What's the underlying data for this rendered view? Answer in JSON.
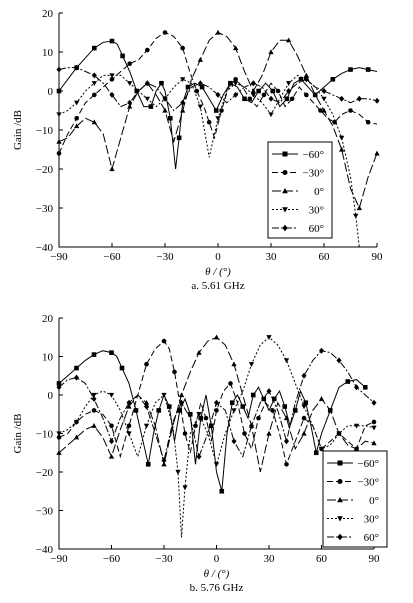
{
  "chart_data": [
    {
      "type": "line",
      "caption": "a. 5.61 GHz",
      "xlabel": "θ / (°)",
      "ylabel": "Gain /dB",
      "xlim": [
        -90,
        90
      ],
      "ylim": [
        -40,
        20
      ],
      "xticks": [
        "−90",
        "−60",
        "−30",
        "0",
        "30",
        "60",
        "90"
      ],
      "yticks": [
        "20",
        "10",
        "0",
        "−10",
        "−20",
        "−30",
        "−40"
      ],
      "legend_position": "bottom-right",
      "series": [
        {
          "name": "−60°",
          "marker": "square",
          "dash": "none",
          "x": [
            -90,
            -85,
            -80,
            -75,
            -70,
            -65,
            -60,
            -57,
            -54,
            -50,
            -46,
            -42,
            -38,
            -35,
            -32,
            -30,
            -27,
            -24,
            -22,
            -20,
            -17,
            -13,
            -9,
            -5,
            -1,
            3,
            7,
            11,
            15,
            19,
            23,
            27,
            31,
            35,
            39,
            43,
            47,
            51,
            55,
            60,
            65,
            70,
            75,
            80,
            85,
            90
          ],
          "y": [
            0,
            3,
            6,
            8.5,
            11,
            12.5,
            12.8,
            12,
            9,
            5,
            0,
            -4,
            -4,
            0,
            2,
            0,
            -7,
            -20,
            -12,
            -3,
            1,
            2,
            1,
            -2,
            -5,
            -1,
            2,
            1,
            -2,
            -3,
            0,
            2,
            0,
            -4,
            -2,
            2,
            3,
            1,
            -1,
            1,
            3,
            4.5,
            5.5,
            6,
            5.5,
            5
          ]
        },
        {
          "name": "−30°",
          "marker": "circle",
          "dash": "6,3",
          "x": [
            -90,
            -85,
            -80,
            -75,
            -70,
            -65,
            -60,
            -55,
            -50,
            -45,
            -40,
            -35,
            -30,
            -25,
            -20,
            -16,
            -12,
            -8,
            -5,
            -2,
            2,
            6,
            10,
            14,
            18,
            22,
            26,
            30,
            34,
            38,
            42,
            46,
            50,
            54,
            58,
            62,
            66,
            70,
            75,
            80,
            85,
            90
          ],
          "y": [
            -16,
            -11,
            -7,
            -3,
            -1,
            1,
            3,
            5,
            7,
            8,
            10.5,
            13.5,
            15,
            14,
            11,
            5,
            0,
            -4,
            -8,
            -12,
            -5,
            1,
            3,
            1,
            -2,
            -4,
            -1,
            2,
            0,
            -4,
            -2,
            1,
            -1,
            -3,
            -5,
            -7,
            -8,
            -6,
            -5,
            -6,
            -8,
            -8.5
          ]
        },
        {
          "name": "0°",
          "marker": "triangle",
          "dash": "9,3",
          "x": [
            -90,
            -85,
            -80,
            -75,
            -70,
            -65,
            -60,
            -55,
            -50,
            -45,
            -40,
            -35,
            -30,
            -25,
            -20,
            -15,
            -10,
            -5,
            0,
            5,
            10,
            15,
            20,
            25,
            30,
            35,
            40,
            45,
            50,
            55,
            60,
            65,
            70,
            75,
            80,
            85,
            90
          ],
          "y": [
            -13,
            -12,
            -9,
            -7,
            -8,
            -11,
            -20,
            -12,
            -4,
            0,
            2,
            -1,
            -5,
            -13,
            -5,
            3,
            8,
            13,
            15,
            14,
            11,
            5,
            0,
            4,
            10,
            13,
            13,
            9,
            4,
            -1,
            -5,
            -9,
            -15,
            -25,
            -30,
            -22,
            -16
          ]
        },
        {
          "name": "30°",
          "marker": "tridown",
          "dash": "2,2",
          "x": [
            -90,
            -85,
            -80,
            -75,
            -70,
            -65,
            -60,
            -55,
            -50,
            -45,
            -40,
            -35,
            -30,
            -25,
            -20,
            -15,
            -10,
            -5,
            0,
            5,
            10,
            15,
            20,
            25,
            30,
            35,
            40,
            45,
            50,
            55,
            60,
            65,
            70,
            75,
            78,
            80
          ],
          "y": [
            -6,
            -5,
            -3,
            0,
            2,
            4,
            4,
            4,
            2,
            0,
            -2,
            -4,
            -2,
            1,
            3,
            2,
            -4,
            -17,
            -7,
            0,
            2,
            1,
            -1,
            -3,
            -6,
            -2,
            2,
            4,
            3,
            1,
            -2,
            -6,
            -12,
            -22,
            -32,
            -40
          ]
        },
        {
          "name": "60°",
          "marker": "diamond",
          "dash": "7,2,2,2",
          "x": [
            -90,
            -85,
            -80,
            -75,
            -70,
            -65,
            -60,
            -55,
            -50,
            -45,
            -40,
            -35,
            -30,
            -25,
            -20,
            -15,
            -10,
            -5,
            0,
            5,
            10,
            15,
            20,
            25,
            30,
            35,
            40,
            45,
            50,
            55,
            60,
            65,
            70,
            75,
            80,
            85,
            90
          ],
          "y": [
            5.5,
            6,
            6,
            5,
            4,
            2,
            -1,
            -4,
            -3,
            0,
            2,
            1,
            -2,
            -5,
            -3,
            1,
            2,
            1,
            -1,
            -3,
            -1,
            1,
            2,
            1,
            -2,
            -3,
            0,
            2,
            3,
            1,
            0,
            -1,
            -2,
            -3,
            -2,
            -2,
            -2.5
          ]
        }
      ]
    },
    {
      "type": "line",
      "caption": "b. 5.76 GHz",
      "xlabel": "θ / (°)",
      "ylabel": "Gain /dB",
      "xlim": [
        -90,
        90
      ],
      "ylim": [
        -40,
        20
      ],
      "xticks": [
        "−90",
        "−60",
        "−30",
        "0",
        "30",
        "60",
        "90"
      ],
      "yticks": [
        "20",
        "10",
        "0",
        "−10",
        "−20",
        "−30",
        "−40"
      ],
      "legend_position": "bottom-right",
      "series": [
        {
          "name": "−60°",
          "marker": "square",
          "dash": "none",
          "x": [
            -90,
            -85,
            -80,
            -75,
            -70,
            -65,
            -60,
            -57,
            -54,
            -50,
            -46,
            -42,
            -39,
            -36,
            -33,
            -30,
            -27,
            -24,
            -21,
            -18,
            -15,
            -12,
            -9,
            -6,
            -3,
            0,
            3,
            6,
            9,
            12,
            15,
            18,
            21,
            24,
            27,
            30,
            33,
            36,
            39,
            42,
            45,
            48,
            51,
            54,
            57,
            60,
            65,
            70,
            75,
            80,
            85
          ],
          "y": [
            3,
            5,
            7,
            9,
            10.5,
            11.5,
            11,
            10,
            7,
            3,
            -4,
            -12,
            -18,
            -10,
            -4,
            0,
            -3,
            -12,
            -4,
            -1,
            -5,
            -18,
            -6,
            0,
            -8,
            -20,
            -25,
            -10,
            -2,
            0,
            -3,
            -6,
            0,
            2,
            -1,
            -4,
            -1,
            1,
            -3,
            -8,
            -4,
            1,
            -2,
            -8,
            -15,
            -10,
            -4,
            2,
            3.5,
            4,
            2
          ]
        },
        {
          "name": "−30°",
          "marker": "circle",
          "dash": "6,3",
          "x": [
            -90,
            -85,
            -80,
            -75,
            -70,
            -65,
            -60,
            -55,
            -50,
            -45,
            -40,
            -35,
            -30,
            -27,
            -24,
            -21,
            -18,
            -15,
            -12,
            -9,
            -6,
            -3,
            0,
            4,
            8,
            12,
            16,
            20,
            24,
            28,
            32,
            36,
            40,
            45,
            50,
            55,
            60,
            65,
            70,
            75,
            80,
            85,
            90
          ],
          "y": [
            -11,
            -10,
            -7,
            -5,
            -4,
            -5,
            -8,
            -16,
            -8,
            0,
            8,
            12,
            14,
            12,
            6,
            -2,
            -10,
            -15,
            -8,
            -2,
            -6,
            -12,
            -4,
            1,
            3,
            -2,
            -10,
            -14,
            -6,
            -2,
            -4,
            -10,
            -18,
            -12,
            -6,
            -8,
            -14,
            -12,
            -10,
            -12,
            -14,
            -8,
            -7
          ]
        },
        {
          "name": "0°",
          "marker": "triangle",
          "dash": "9,3",
          "x": [
            -90,
            -85,
            -80,
            -75,
            -70,
            -65,
            -60,
            -55,
            -50,
            -45,
            -40,
            -35,
            -30,
            -25,
            -20,
            -15,
            -10,
            -5,
            0,
            5,
            10,
            15,
            20,
            25,
            30,
            35,
            40,
            45,
            50,
            55,
            60,
            65,
            70,
            75,
            80,
            85,
            90
          ],
          "y": [
            -15,
            -13,
            -11,
            -9,
            -8,
            -11,
            -16,
            -9,
            -3,
            0,
            -2,
            -8,
            -18,
            -8,
            0,
            6,
            11,
            14,
            15,
            13,
            8,
            0,
            -8,
            -20,
            -10,
            -2,
            -6,
            -14,
            -10,
            -4,
            -1,
            -4,
            -10,
            -13,
            -14,
            -12,
            -12.5
          ]
        },
        {
          "name": "30°",
          "marker": "tridown",
          "dash": "2,2",
          "x": [
            -90,
            -85,
            -80,
            -75,
            -70,
            -65,
            -60,
            -55,
            -50,
            -45,
            -40,
            -35,
            -30,
            -25,
            -22,
            -20,
            -18,
            -15,
            -10,
            -5,
            0,
            5,
            10,
            15,
            20,
            25,
            30,
            35,
            40,
            45,
            50,
            55,
            60,
            65,
            70,
            75,
            80,
            85,
            90
          ],
          "y": [
            -10,
            -9,
            -7,
            -3,
            0,
            1,
            0,
            -4,
            -10,
            -16,
            -8,
            -2,
            0,
            -8,
            -20,
            -37,
            -24,
            -10,
            -5,
            -10,
            -18,
            -10,
            -4,
            1,
            8,
            13,
            15,
            13,
            9,
            3,
            -3,
            -8,
            -14,
            -13,
            -10,
            -8,
            -8,
            -8,
            -8.5
          ]
        },
        {
          "name": "60°",
          "marker": "diamond",
          "dash": "7,2,2,2",
          "x": [
            -90,
            -85,
            -80,
            -75,
            -70,
            -65,
            -60,
            -55,
            -50,
            -45,
            -40,
            -35,
            -30,
            -25,
            -20,
            -15,
            -10,
            -5,
            0,
            5,
            10,
            15,
            20,
            25,
            30,
            35,
            40,
            45,
            50,
            55,
            60,
            65,
            70,
            75,
            80,
            85,
            90
          ],
          "y": [
            2,
            4,
            4.5,
            3,
            -1,
            -6,
            -12,
            -6,
            -2,
            0,
            -3,
            -10,
            -17,
            -7,
            -2,
            -6,
            -16,
            -10,
            -2,
            -4,
            -12,
            -16,
            -8,
            -2,
            1,
            -4,
            -12,
            -2,
            5,
            9,
            11.5,
            11,
            9,
            6,
            2,
            0,
            -2
          ]
        }
      ]
    }
  ]
}
